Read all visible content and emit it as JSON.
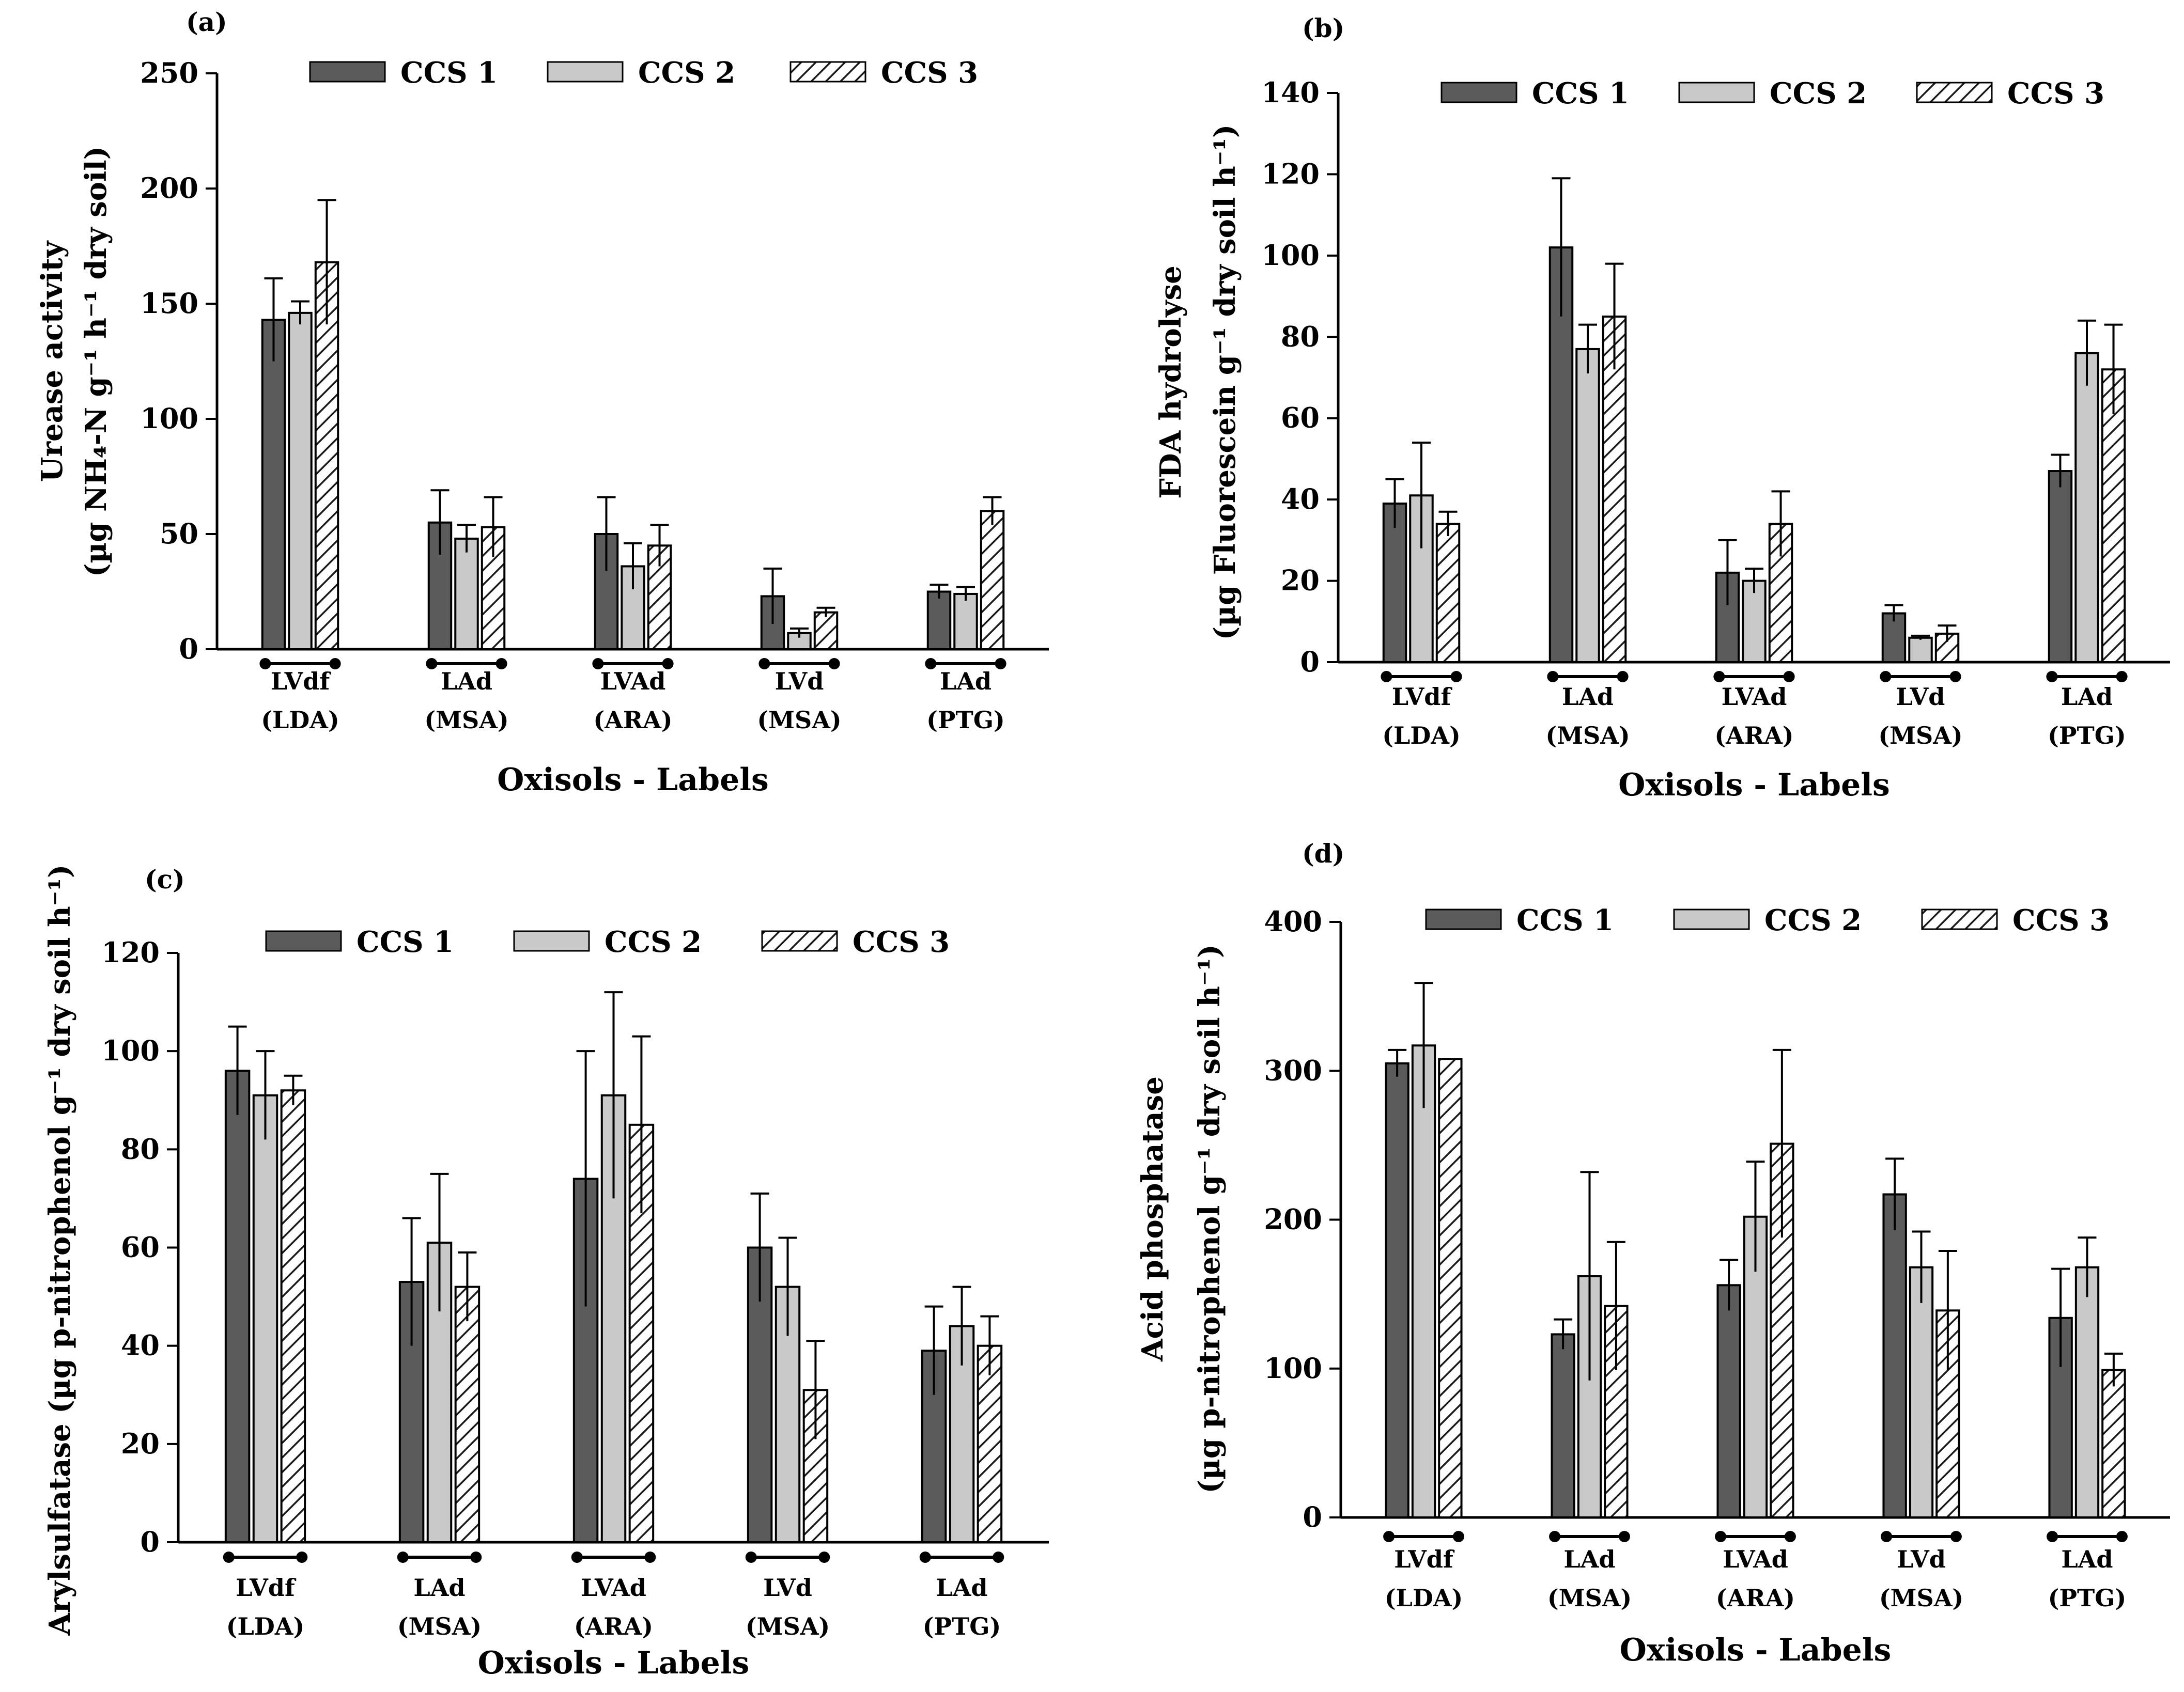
{
  "colors": {
    "ccs1": "#5b5b5b",
    "ccs2": "#c9c9c9",
    "ccs3": "#ffffff",
    "hatch": "#1a1a1a",
    "axis": "#000000"
  },
  "legend": [
    "CCS 1",
    "CCS 2",
    "CCS 3"
  ],
  "chart_data": [
    {
      "id": "a",
      "panel_label": "(a)",
      "type": "bar",
      "title": "",
      "ylabel_lines": [
        "Urease activity",
        "(µg NH₄-N  g⁻¹ h⁻¹ dry soil)"
      ],
      "xlabel": "Oxisols - Labels",
      "ylim": [
        0,
        250
      ],
      "yticks": [
        0,
        50,
        100,
        150,
        200,
        250
      ],
      "categories": [
        [
          "LVdf",
          "(LDA)"
        ],
        [
          "LAd",
          "(MSA)"
        ],
        [
          "LVAd",
          "(ARA)"
        ],
        [
          "LVd",
          "(MSA)"
        ],
        [
          "LAd",
          "(PTG)"
        ]
      ],
      "legend_position": "top",
      "series": [
        {
          "name": "CCS 1",
          "values": [
            143,
            55,
            50,
            23,
            25
          ],
          "errors": [
            18,
            14,
            16,
            12,
            3
          ]
        },
        {
          "name": "CCS 2",
          "values": [
            146,
            48,
            36,
            7,
            24
          ],
          "errors": [
            5,
            6,
            10,
            2,
            3
          ]
        },
        {
          "name": "CCS 3",
          "values": [
            168,
            53,
            45,
            16,
            60
          ],
          "errors": [
            27,
            13,
            9,
            2,
            6
          ]
        }
      ]
    },
    {
      "id": "b",
      "panel_label": "(b)",
      "type": "bar",
      "title": "",
      "ylabel_lines": [
        "FDA hydrolyse",
        "(µg Fluorescein  g⁻¹ dry soil h⁻¹)"
      ],
      "xlabel": "Oxisols - Labels",
      "ylim": [
        0,
        140
      ],
      "yticks": [
        0,
        20,
        40,
        60,
        80,
        100,
        120,
        140
      ],
      "categories": [
        [
          "LVdf",
          "(LDA)"
        ],
        [
          "LAd",
          "(MSA)"
        ],
        [
          "LVAd",
          "(ARA)"
        ],
        [
          "LVd",
          "(MSA)"
        ],
        [
          "LAd",
          "(PTG)"
        ]
      ],
      "legend_position": "top",
      "series": [
        {
          "name": "CCS 1",
          "values": [
            39,
            102,
            22,
            12,
            47
          ],
          "errors": [
            6,
            17,
            8,
            2,
            4
          ]
        },
        {
          "name": "CCS 2",
          "values": [
            41,
            77,
            20,
            6,
            76
          ],
          "errors": [
            13,
            6,
            3,
            0.5,
            8
          ]
        },
        {
          "name": "CCS 3",
          "values": [
            34,
            85,
            34,
            7,
            72
          ],
          "errors": [
            3,
            13,
            8,
            2,
            11
          ]
        }
      ]
    },
    {
      "id": "c",
      "panel_label": "(c)",
      "type": "bar",
      "title": "",
      "ylabel_lines": [
        "Arylsulfatase (µg p-nitrophenol  g⁻¹ dry soil h⁻¹)"
      ],
      "xlabel": "Oxisols - Labels",
      "ylim": [
        0,
        120
      ],
      "yticks": [
        0,
        20,
        40,
        60,
        80,
        100,
        120
      ],
      "categories": [
        [
          "LVdf",
          "(LDA)"
        ],
        [
          "LAd",
          "(MSA)"
        ],
        [
          "LVAd",
          "(ARA)"
        ],
        [
          "LVd",
          "(MSA)"
        ],
        [
          "LAd",
          "(PTG)"
        ]
      ],
      "legend_position": "top",
      "series": [
        {
          "name": "CCS 1",
          "values": [
            96,
            53,
            74,
            60,
            39
          ],
          "errors": [
            9,
            13,
            26,
            11,
            9
          ]
        },
        {
          "name": "CCS 2",
          "values": [
            91,
            61,
            91,
            52,
            44
          ],
          "errors": [
            9,
            14,
            21,
            10,
            8
          ]
        },
        {
          "name": "CCS 3",
          "values": [
            92,
            52,
            85,
            31,
            40
          ],
          "errors": [
            3,
            7,
            18,
            10,
            6
          ]
        }
      ]
    },
    {
      "id": "d",
      "panel_label": "(d)",
      "type": "bar",
      "title": "",
      "ylabel_lines": [
        "Acid phosphatase",
        "(µg p-nitrophenol  g⁻¹ dry soil h⁻¹)"
      ],
      "xlabel": "Oxisols - Labels",
      "ylim": [
        0,
        400
      ],
      "yticks": [
        0,
        100,
        200,
        300,
        400
      ],
      "categories": [
        [
          "LVdf",
          "(LDA)"
        ],
        [
          "LAd",
          "(MSA)"
        ],
        [
          "LVAd",
          "(ARA)"
        ],
        [
          "LVd",
          "(MSA)"
        ],
        [
          "LAd",
          "(PTG)"
        ]
      ],
      "legend_position": "top",
      "series": [
        {
          "name": "CCS 1",
          "values": [
            305,
            123,
            156,
            217,
            134
          ],
          "errors": [
            9,
            10,
            17,
            24,
            33
          ]
        },
        {
          "name": "CCS 2",
          "values": [
            317,
            162,
            202,
            168,
            168
          ],
          "errors": [
            42,
            70,
            37,
            24,
            20
          ]
        },
        {
          "name": "CCS 3",
          "values": [
            308,
            142,
            251,
            139,
            99
          ],
          "errors": [
            0,
            43,
            63,
            40,
            11
          ]
        }
      ]
    }
  ]
}
